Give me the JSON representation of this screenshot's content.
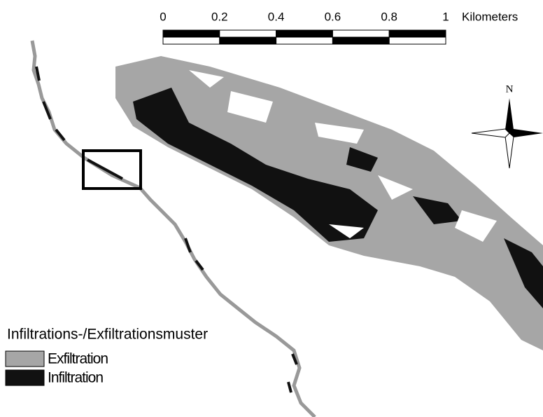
{
  "scale_bar": {
    "ticks": [
      0,
      0.2,
      0.4,
      0.6,
      0.8,
      1
    ],
    "unit": "Kilometers"
  },
  "north_arrow": {
    "label": "N"
  },
  "legend": {
    "title": "Infiltrations-/Exfiltrationsmuster",
    "items": [
      {
        "label": "Exfiltration",
        "color": "#a6a6a6"
      },
      {
        "label": "Infiltration",
        "color": "#111111"
      }
    ]
  }
}
